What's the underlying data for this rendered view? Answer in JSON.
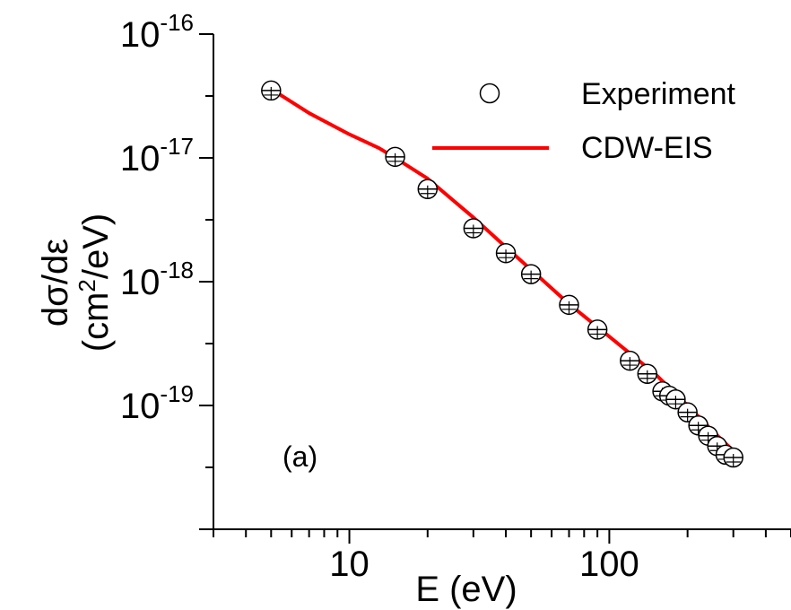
{
  "chart_data": {
    "type": "scatter",
    "x_scale": "log",
    "y_scale": "log",
    "xlim": [
      3,
      500
    ],
    "ylim": [
      1e-20,
      1e-16
    ],
    "xlabel": "E (eV)",
    "ylabel": {
      "line1": "dσ/dε",
      "line2_pre": "(cm",
      "line2_sup": "2",
      "line2_post": "/eV)"
    },
    "x_ticks": [
      {
        "value": 10,
        "label": "10"
      },
      {
        "value": 100,
        "label": "100"
      }
    ],
    "y_ticks": [
      {
        "value": 1e-19,
        "base": "10",
        "exp": "-19"
      },
      {
        "value": 1e-18,
        "base": "10",
        "exp": "-18"
      },
      {
        "value": 1e-17,
        "base": "10",
        "exp": "-17"
      },
      {
        "value": 1e-16,
        "base": "10",
        "exp": "-16"
      }
    ],
    "annotation": "(a)",
    "grid": false,
    "legend_position": "top-right",
    "series": [
      {
        "name": "Experiment",
        "kind": "points",
        "marker": "open-circle",
        "color": "#000000",
        "x": [
          5,
          15,
          20,
          30,
          40,
          50,
          70,
          90,
          120,
          140,
          160,
          170,
          180,
          200,
          220,
          240,
          260,
          280,
          300
        ],
        "y": [
          3.5e-17,
          1.02e-17,
          5.6e-18,
          2.7e-18,
          1.7e-18,
          1.15e-18,
          6.5e-19,
          4.1e-19,
          2.3e-19,
          1.8e-19,
          1.3e-19,
          1.2e-19,
          1.12e-19,
          8.8e-20,
          6.9e-20,
          5.7e-20,
          4.7e-20,
          4e-20,
          3.8e-20
        ]
      },
      {
        "name": "CDW-EIS",
        "kind": "line",
        "color": "#ff0000",
        "x": [
          5,
          7,
          10,
          13,
          15,
          20,
          30,
          40,
          50,
          70,
          100,
          150,
          200,
          250,
          300
        ],
        "y": [
          3.6e-17,
          2.3e-17,
          1.55e-17,
          1.2e-17,
          1e-17,
          6.8e-18,
          3.3e-18,
          1.9e-18,
          1.25e-18,
          6.6e-19,
          3.6e-19,
          1.8e-19,
          1e-19,
          6.2e-20,
          4.3e-20
        ]
      }
    ]
  }
}
